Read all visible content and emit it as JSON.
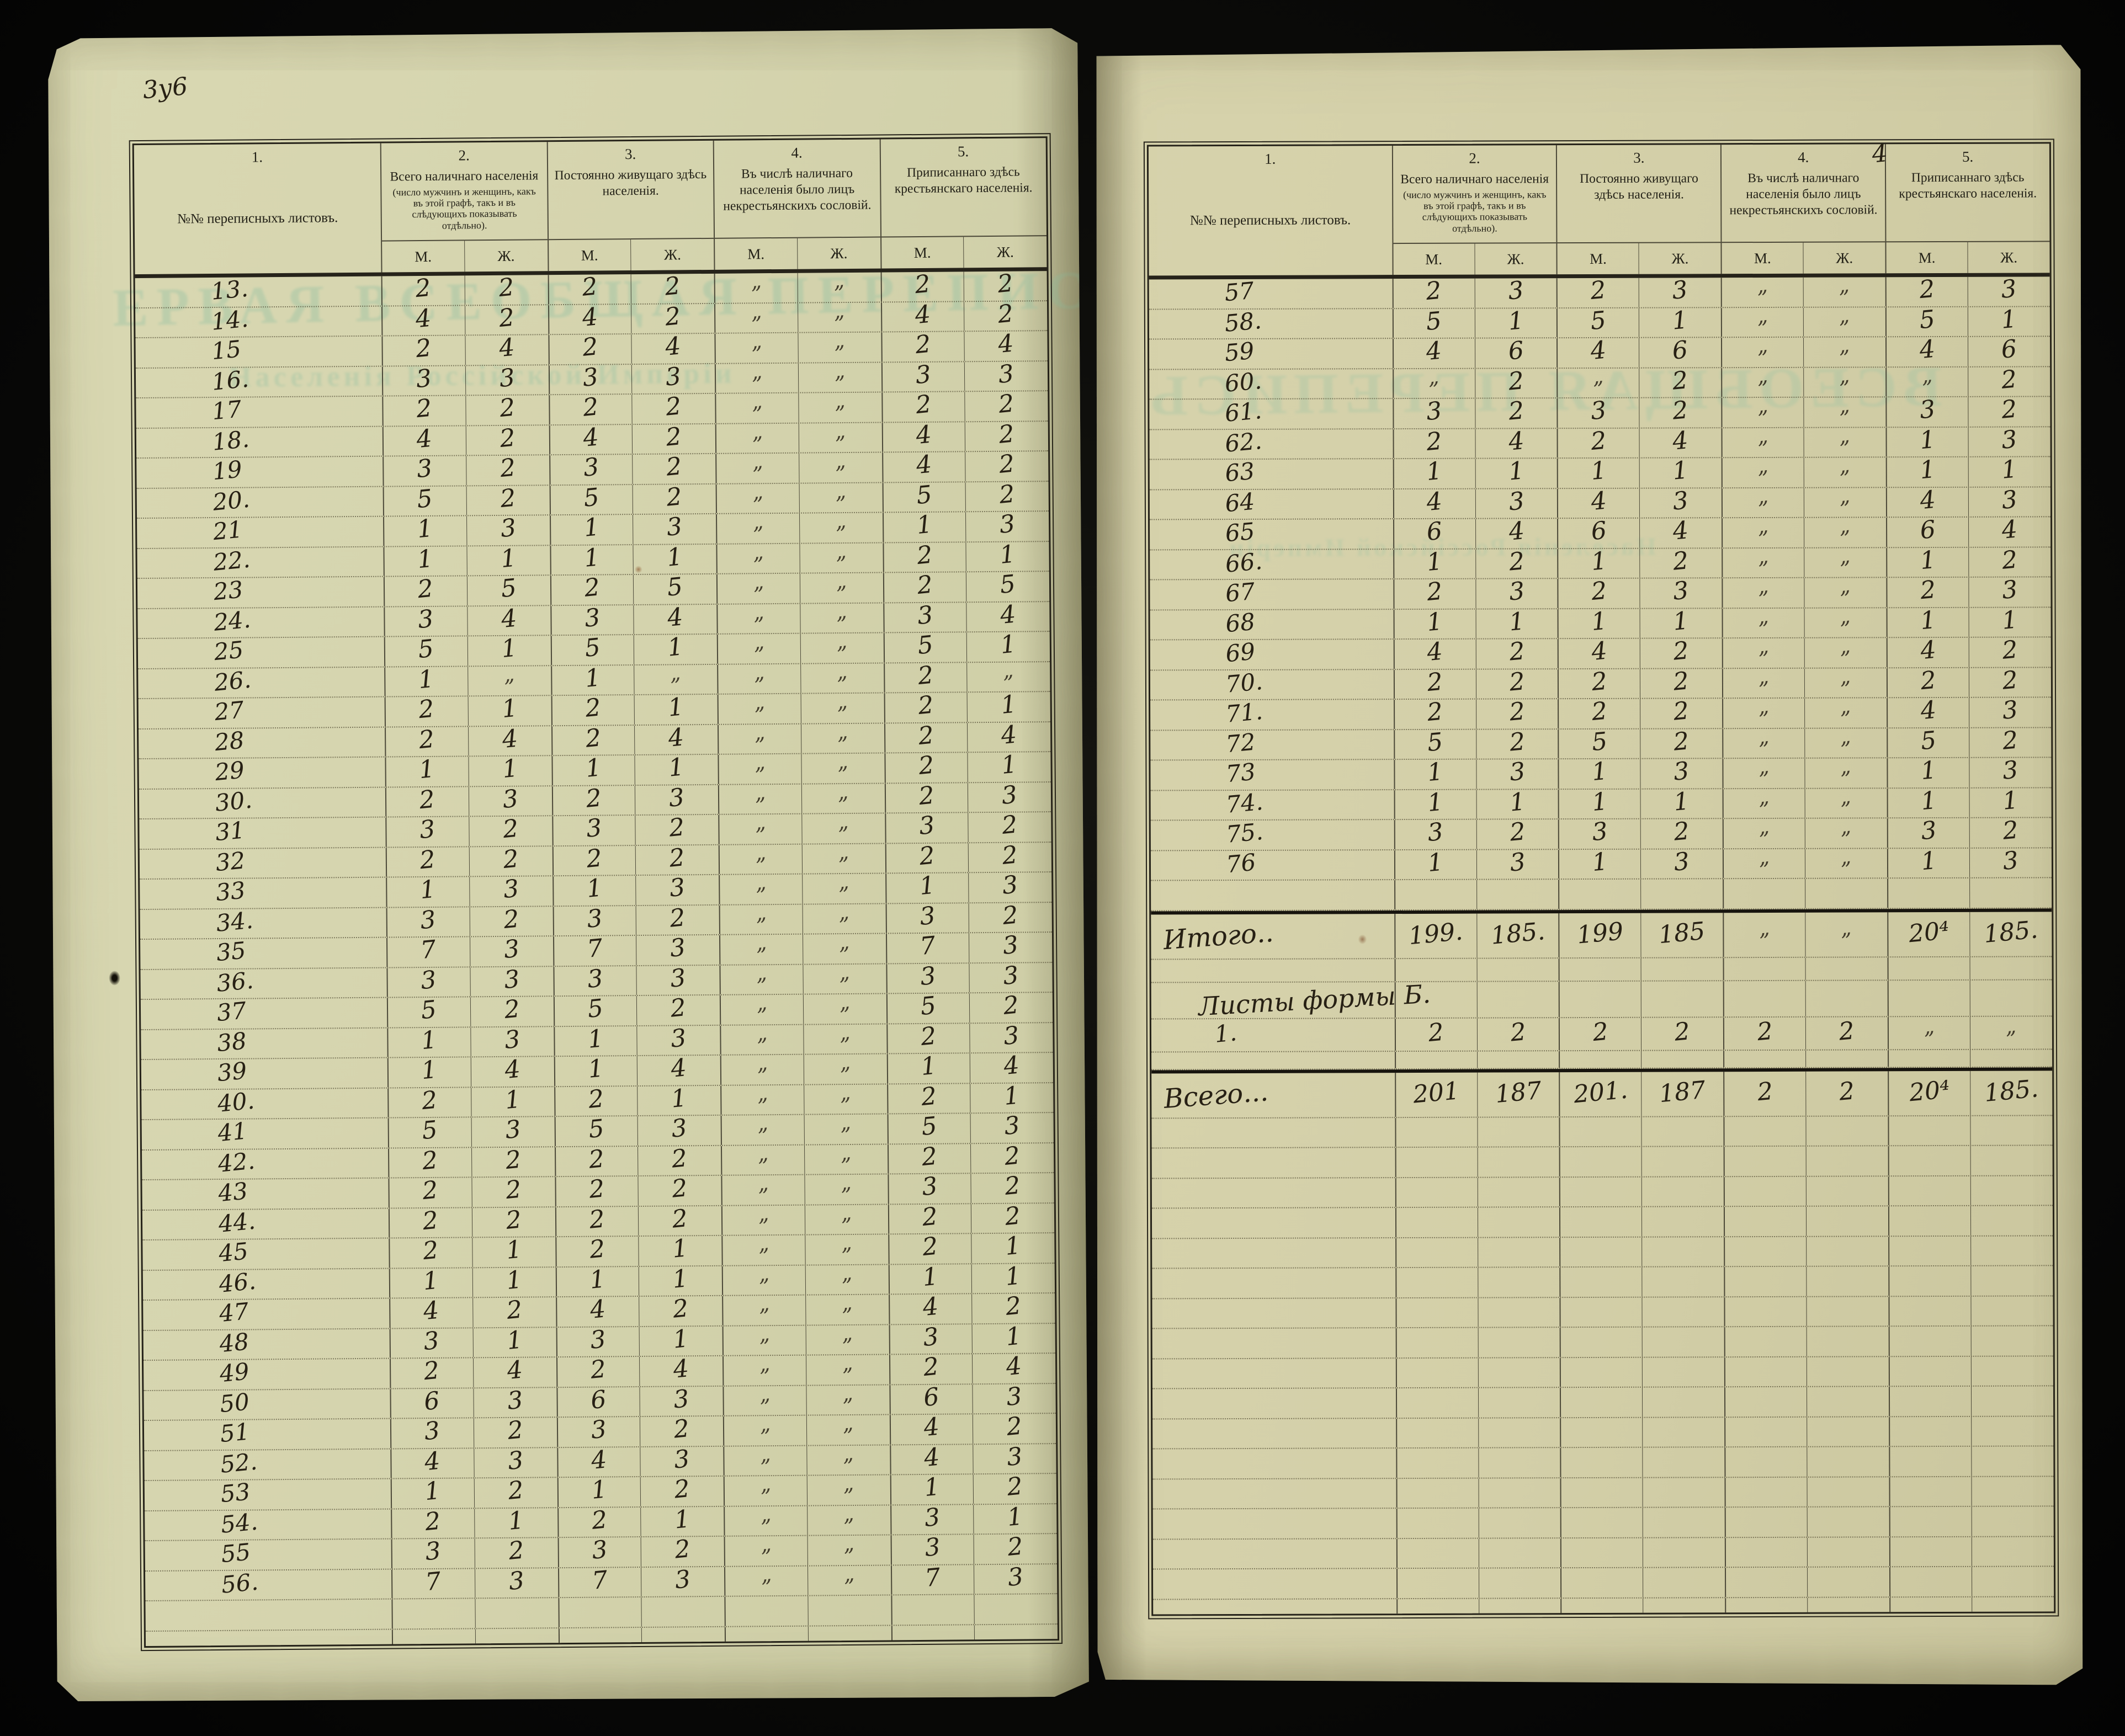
{
  "colors": {
    "backdrop": "#060605",
    "page": "#d9d8b2",
    "page2": "#d7d3ac",
    "line": "#26231a",
    "linefade": "rgba(45,42,30,0.82)",
    "dot": "rgba(72,66,44,0.62)",
    "ink": "#272014",
    "ghost": "#97c2a3"
  },
  "left_page": {
    "folio_note": "3у6"
  },
  "right_page": {
    "folio_note": "4"
  },
  "ghosts": {
    "left_big": "ЕРВАЯ ВСЕОБЩАЯ ПЕРЕПИСЬ",
    "left_small": "Населенія Россійской Имперіи",
    "right_big": "ВСЕОБЩАЯ ПЕРЕПИСЬ",
    "right_small": "Населенія Россійской Имперіи"
  },
  "header": {
    "cols": [
      {
        "num": "1.",
        "label": "№№ переписныхъ листовъ."
      },
      {
        "num": "2.",
        "label": "Всего наличнаго населенія",
        "note": "(число мужчинъ и женщинъ, какъ въ этой графѣ, такъ и въ слѣдующихъ показывать отдѣльно)."
      },
      {
        "num": "3.",
        "label": "Постоянно живущаго здѣсь населенія."
      },
      {
        "num": "4.",
        "label": "Въ числѣ наличнаго населенія было лицъ некрестьянскихъ сословій."
      },
      {
        "num": "5.",
        "label": "Приписаннаго здѣсь крестьянскаго населенія."
      }
    ],
    "m": "М.",
    "f": "Ж."
  },
  "left_rows": [
    [
      "13.",
      "2",
      "2",
      "2",
      "2",
      "„",
      "„",
      "2",
      "2"
    ],
    [
      "14.",
      "4",
      "2",
      "4",
      "2",
      "„",
      "„",
      "4",
      "2"
    ],
    [
      "15",
      "2",
      "4",
      "2",
      "4",
      "„",
      "„",
      "2",
      "4"
    ],
    [
      "16.",
      "3",
      "3",
      "3",
      "3",
      "„",
      "„",
      "3",
      "3"
    ],
    [
      "17",
      "2",
      "2",
      "2",
      "2",
      "„",
      "„",
      "2",
      "2"
    ],
    [
      "18.",
      "4",
      "2",
      "4",
      "2",
      "„",
      "„",
      "4",
      "2"
    ],
    [
      "19",
      "3",
      "2",
      "3",
      "2",
      "„",
      "„",
      "4",
      "2"
    ],
    [
      "20.",
      "5",
      "2",
      "5",
      "2",
      "„",
      "„",
      "5",
      "2"
    ],
    [
      "21",
      "1",
      "3",
      "1",
      "3",
      "„",
      "„",
      "1",
      "3"
    ],
    [
      "22.",
      "1",
      "1",
      "1",
      "1",
      "„",
      "„",
      "2",
      "1"
    ],
    [
      "23",
      "2",
      "5",
      "2",
      "5",
      "„",
      "„",
      "2",
      "5"
    ],
    [
      "24.",
      "3",
      "4",
      "3",
      "4",
      "„",
      "„",
      "3",
      "4"
    ],
    [
      "25",
      "5",
      "1",
      "5",
      "1",
      "„",
      "„",
      "5",
      "1"
    ],
    [
      "26.",
      "1",
      "„",
      "1",
      "„",
      "„",
      "„",
      "2",
      "„"
    ],
    [
      "27",
      "2",
      "1",
      "2",
      "1",
      "„",
      "„",
      "2",
      "1"
    ],
    [
      "28",
      "2",
      "4",
      "2",
      "4",
      "„",
      "„",
      "2",
      "4"
    ],
    [
      "29",
      "1",
      "1",
      "1",
      "1",
      "„",
      "„",
      "2",
      "1"
    ],
    [
      "30.",
      "2",
      "3",
      "2",
      "3",
      "„",
      "„",
      "2",
      "3"
    ],
    [
      "31",
      "3",
      "2",
      "3",
      "2",
      "„",
      "„",
      "3",
      "2"
    ],
    [
      "32",
      "2",
      "2",
      "2",
      "2",
      "„",
      "„",
      "2",
      "2"
    ],
    [
      "33",
      "1",
      "3",
      "1",
      "3",
      "„",
      "„",
      "1",
      "3"
    ],
    [
      "34.",
      "3",
      "2",
      "3",
      "2",
      "„",
      "„",
      "3",
      "2"
    ],
    [
      "35",
      "7",
      "3",
      "7",
      "3",
      "„",
      "„",
      "7",
      "3"
    ],
    [
      "36.",
      "3",
      "3",
      "3",
      "3",
      "„",
      "„",
      "3",
      "3"
    ],
    [
      "37",
      "5",
      "2",
      "5",
      "2",
      "„",
      "„",
      "5",
      "2"
    ],
    [
      "38",
      "1",
      "3",
      "1",
      "3",
      "„",
      "„",
      "2",
      "3"
    ],
    [
      "39",
      "1",
      "4",
      "1",
      "4",
      "„",
      "„",
      "1",
      "4"
    ],
    [
      "40.",
      "2",
      "1",
      "2",
      "1",
      "„",
      "„",
      "2",
      "1"
    ],
    [
      "41",
      "5",
      "3",
      "5",
      "3",
      "„",
      "„",
      "5",
      "3"
    ],
    [
      "42.",
      "2",
      "2",
      "2",
      "2",
      "„",
      "„",
      "2",
      "2"
    ],
    [
      "43",
      "2",
      "2",
      "2",
      "2",
      "„",
      "„",
      "3",
      "2"
    ],
    [
      "44.",
      "2",
      "2",
      "2",
      "2",
      "„",
      "„",
      "2",
      "2"
    ],
    [
      "45",
      "2",
      "1",
      "2",
      "1",
      "„",
      "„",
      "2",
      "1"
    ],
    [
      "46.",
      "1",
      "1",
      "1",
      "1",
      "„",
      "„",
      "1",
      "1"
    ],
    [
      "47",
      "4",
      "2",
      "4",
      "2",
      "„",
      "„",
      "4",
      "2"
    ],
    [
      "48",
      "3",
      "1",
      "3",
      "1",
      "„",
      "„",
      "3",
      "1"
    ],
    [
      "49",
      "2",
      "4",
      "2",
      "4",
      "„",
      "„",
      "2",
      "4"
    ],
    [
      "50",
      "6",
      "3",
      "6",
      "3",
      "„",
      "„",
      "6",
      "3"
    ],
    [
      "51",
      "3",
      "2",
      "3",
      "2",
      "„",
      "„",
      "4",
      "2"
    ],
    [
      "52.",
      "4",
      "3",
      "4",
      "3",
      "„",
      "„",
      "4",
      "3"
    ],
    [
      "53",
      "1",
      "2",
      "1",
      "2",
      "„",
      "„",
      "1",
      "2"
    ],
    [
      "54.",
      "2",
      "1",
      "2",
      "1",
      "„",
      "„",
      "3",
      "1"
    ],
    [
      "55",
      "3",
      "2",
      "3",
      "2",
      "„",
      "„",
      "3",
      "2"
    ],
    [
      "56.",
      "7",
      "3",
      "7",
      "3",
      "„",
      "„",
      "7",
      "3"
    ]
  ],
  "right_rows": [
    [
      "57",
      "2",
      "3",
      "2",
      "3",
      "„",
      "„",
      "2",
      "3"
    ],
    [
      "58.",
      "5",
      "1",
      "5",
      "1",
      "„",
      "„",
      "5",
      "1"
    ],
    [
      "59",
      "4",
      "6",
      "4",
      "6",
      "„",
      "„",
      "4",
      "6"
    ],
    [
      "60.",
      "„",
      "2",
      "„",
      "2",
      "„",
      "„",
      "„",
      "2"
    ],
    [
      "61.",
      "3",
      "2",
      "3",
      "2",
      "„",
      "„",
      "3",
      "2"
    ],
    [
      "62.",
      "2",
      "4",
      "2",
      "4",
      "„",
      "„",
      "1",
      "3"
    ],
    [
      "63",
      "1",
      "1",
      "1",
      "1",
      "„",
      "„",
      "1",
      "1"
    ],
    [
      "64",
      "4",
      "3",
      "4",
      "3",
      "„",
      "„",
      "4",
      "3"
    ],
    [
      "65",
      "6",
      "4",
      "6",
      "4",
      "„",
      "„",
      "6",
      "4"
    ],
    [
      "66.",
      "1",
      "2",
      "1",
      "2",
      "„",
      "„",
      "1",
      "2"
    ],
    [
      "67",
      "2",
      "3",
      "2",
      "3",
      "„",
      "„",
      "2",
      "3"
    ],
    [
      "68",
      "1",
      "1",
      "1",
      "1",
      "„",
      "„",
      "1",
      "1"
    ],
    [
      "69",
      "4",
      "2",
      "4",
      "2",
      "„",
      "„",
      "4",
      "2"
    ],
    [
      "70.",
      "2",
      "2",
      "2",
      "2",
      "„",
      "„",
      "2",
      "2"
    ],
    [
      "71.",
      "2",
      "2",
      "2",
      "2",
      "„",
      "„",
      "4",
      "3"
    ],
    [
      "72",
      "5",
      "2",
      "5",
      "2",
      "„",
      "„",
      "5",
      "2"
    ],
    [
      "73",
      "1",
      "3",
      "1",
      "3",
      "„",
      "„",
      "1",
      "3"
    ],
    [
      "74.",
      "1",
      "1",
      "1",
      "1",
      "„",
      "„",
      "1",
      "1"
    ],
    [
      "75.",
      "3",
      "2",
      "3",
      "2",
      "„",
      "„",
      "3",
      "2"
    ],
    [
      "76",
      "1",
      "3",
      "1",
      "3",
      "„",
      "„",
      "1",
      "3"
    ]
  ],
  "right_totals": {
    "itogo_label": "Итого..",
    "itogo": [
      "199.",
      "185.",
      "199",
      "185",
      "„",
      "„",
      "20⁴",
      "185."
    ],
    "forms_label": "Листы формы Б.",
    "forms_row_no": "1.",
    "forms": [
      "2",
      "2",
      "2",
      "2",
      "2",
      "2",
      "„",
      "„"
    ],
    "vsego_label": "Всего...",
    "vsego": [
      "201",
      "187",
      "201.",
      "187",
      "2",
      "2",
      "20⁴",
      "185."
    ]
  }
}
